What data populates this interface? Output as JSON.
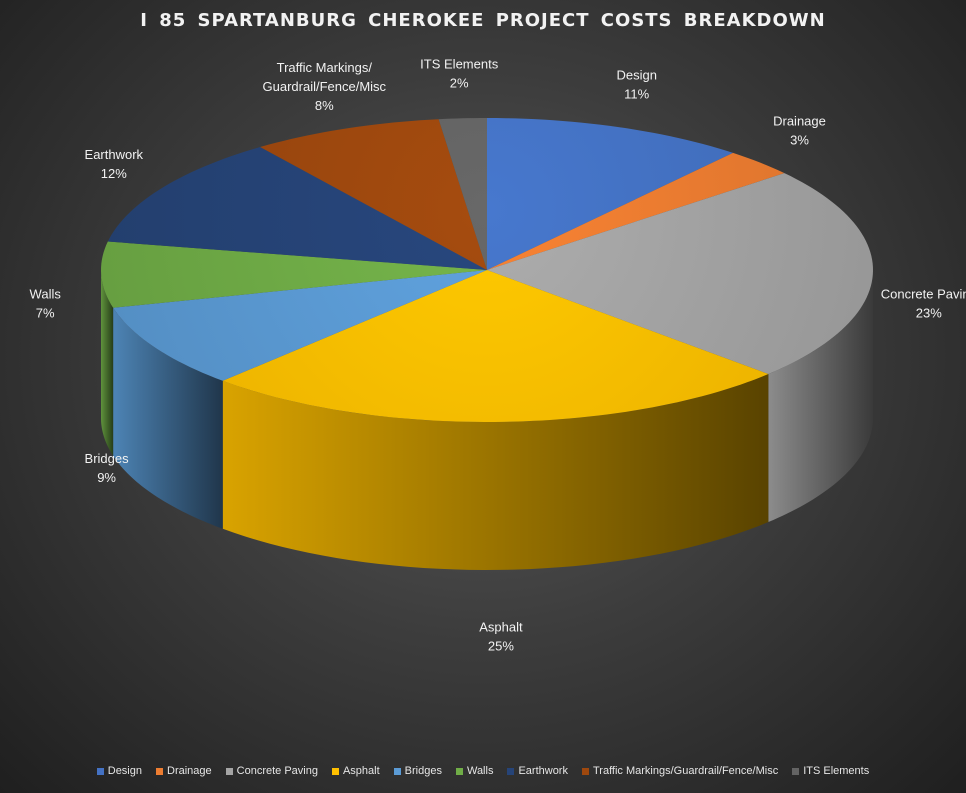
{
  "chart_data": {
    "type": "pie",
    "title": "I 85 SPARTANBURG CHEROKEE PROJECT COSTS BREAKDOWN",
    "style": "3d",
    "legend_position": "bottom",
    "slices": [
      {
        "name": "Design",
        "value": 11,
        "label_name": "Design",
        "label_value": "11%",
        "color": "#4472c4"
      },
      {
        "name": "Drainage",
        "value": 3,
        "label_name": "Drainage",
        "label_value": "3%",
        "color": "#ed7d31"
      },
      {
        "name": "Concrete Paving",
        "value": 23,
        "label_name": "Concrete Paving",
        "label_value": "23%",
        "color": "#a5a5a5"
      },
      {
        "name": "Asphalt",
        "value": 25,
        "label_name": "Asphalt",
        "label_value": "25%",
        "color": "#ffc000"
      },
      {
        "name": "Bridges",
        "value": 9,
        "label_name": "Bridges",
        "label_value": "9%",
        "color": "#5b9bd5"
      },
      {
        "name": "Walls",
        "value": 7,
        "label_name": "Walls",
        "label_value": "7%",
        "color": "#70ad47"
      },
      {
        "name": "Earthwork",
        "value": 12,
        "label_name": "Earthwork",
        "label_value": "12%",
        "color": "#264478"
      },
      {
        "name": "Traffic Markings/Guardrail/Fence/Misc",
        "value": 8,
        "label_lines": [
          "Traffic Markings/",
          "Guardrail/Fence/Misc"
        ],
        "label_value": "8%",
        "color": "#9e480e"
      },
      {
        "name": "ITS Elements",
        "value": 2,
        "label_name": "ITS Elements",
        "label_value": "2%",
        "color": "#636363"
      }
    ]
  }
}
